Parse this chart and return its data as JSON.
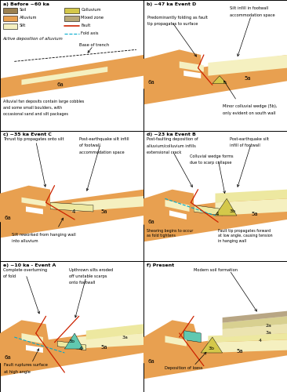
{
  "bg": "#ffffff",
  "alluvium": "#e8a050",
  "silt": "#f5f0c0",
  "silt2": "#ede8a0",
  "soil": "#9B8050",
  "colluvium": "#d4c84a",
  "mixed": "#b8a878",
  "teal": "#60c8b0",
  "fault": "#cc2200",
  "fold": "#00aacc",
  "outline": "#000000",
  "panel_labels": [
    "a) Before ~60 ka",
    "b) ~47 ka Event D",
    "c) ~35 ka Event C",
    "d) ~23 ka Event B",
    "e) ~10 ka - Event A",
    "f) Present"
  ]
}
